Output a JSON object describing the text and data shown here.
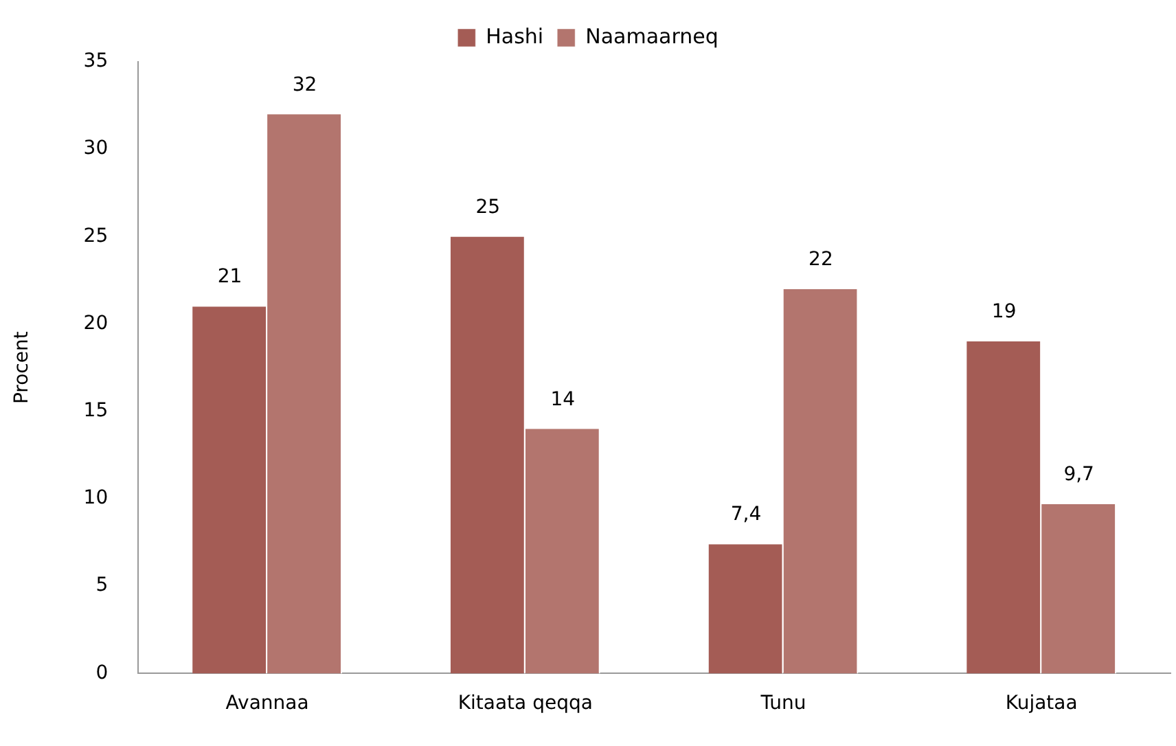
{
  "chart_data": {
    "type": "bar",
    "ylabel": "Procent",
    "categories": [
      "Avannaa",
      "Kitaata qeqqa",
      "Tunu",
      "Kujataa"
    ],
    "series": [
      {
        "name": "Hashi",
        "color": "#a45c55",
        "values": [
          21,
          25,
          7.4,
          19
        ],
        "value_labels": [
          "21",
          "25",
          "7,4",
          "19"
        ]
      },
      {
        "name": "Naamaarneq",
        "color": "#b3756e",
        "values": [
          32,
          14,
          22,
          9.7
        ],
        "value_labels": [
          "32",
          "14",
          "22",
          "9,7"
        ]
      }
    ],
    "ylim": [
      0,
      35
    ],
    "yticks": [
      0,
      5,
      10,
      15,
      20,
      25,
      30,
      35
    ],
    "grid": false,
    "legend": "top"
  }
}
